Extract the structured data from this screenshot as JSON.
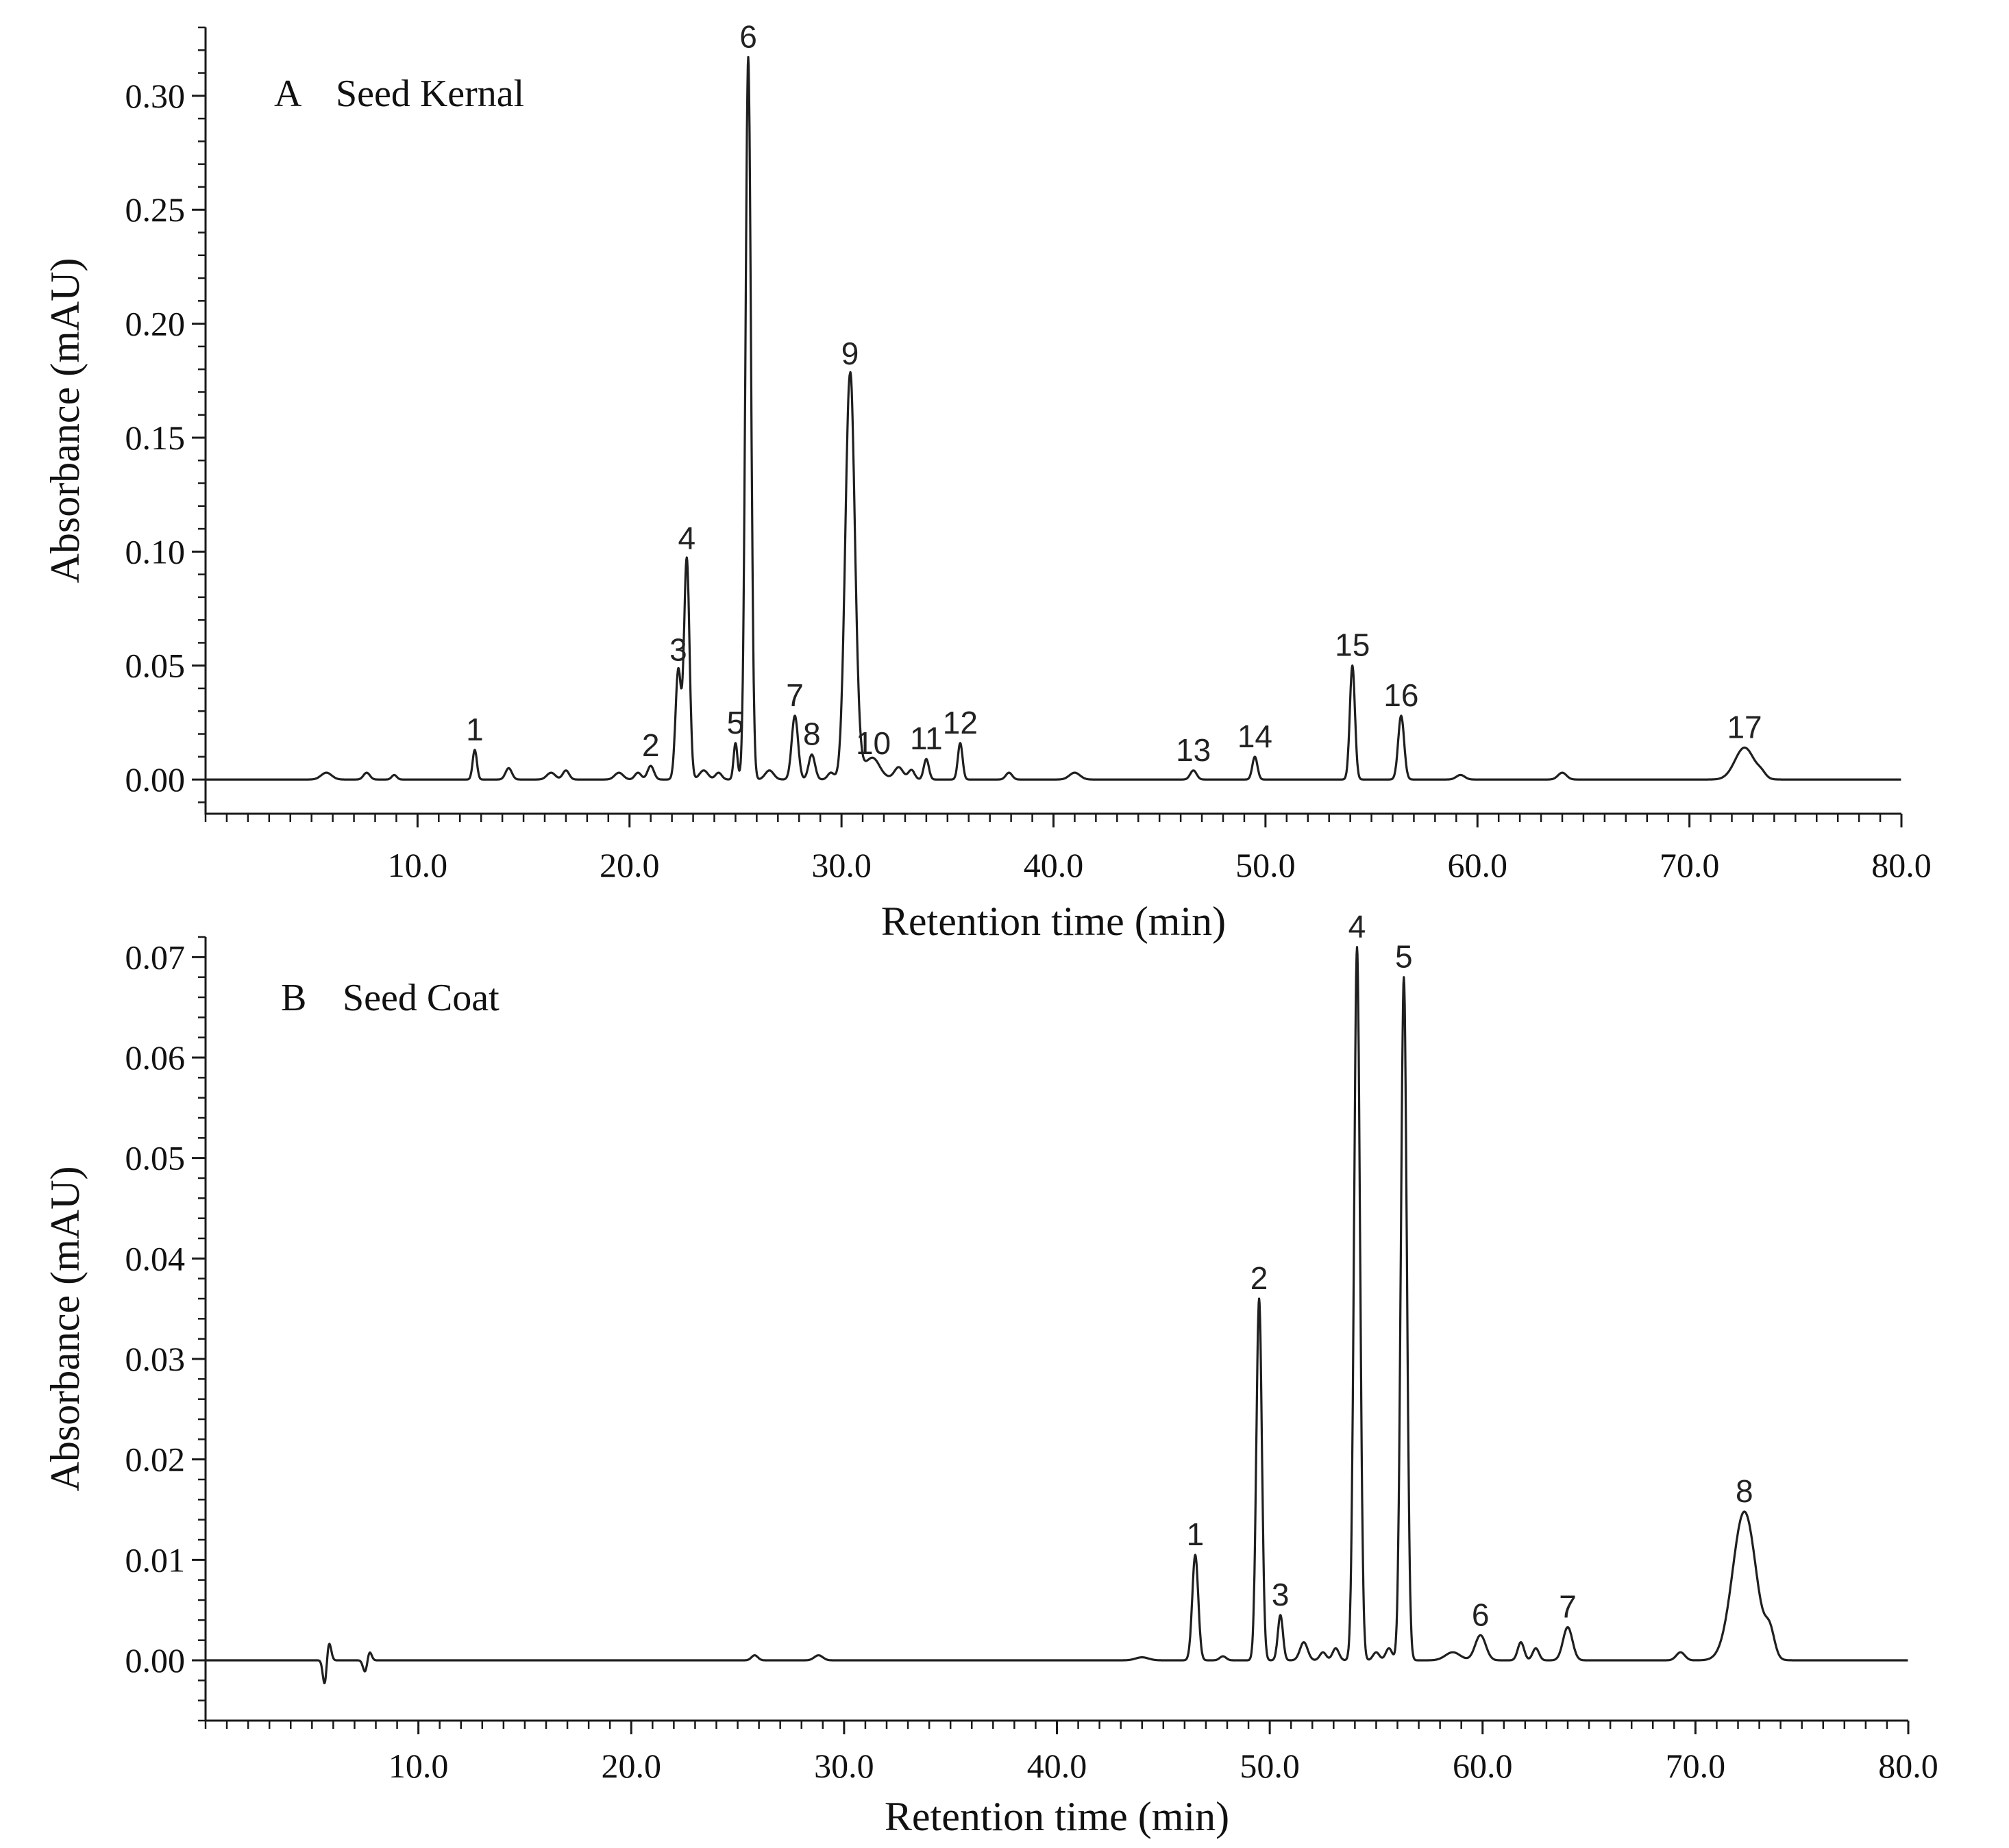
{
  "chart_data": [
    {
      "type": "line",
      "panel_letter": "A",
      "title": "Seed Kernal",
      "xlabel": "Retention time (min)",
      "ylabel": "Absorbance (mAU)",
      "xlim": [
        0,
        80
      ],
      "ylim": [
        -0.015,
        0.33
      ],
      "x_ticks": [
        10,
        20,
        30,
        40,
        50,
        60,
        70,
        80
      ],
      "x_tick_labels": [
        "10.0",
        "20.0",
        "30.0",
        "40.0",
        "50.0",
        "60.0",
        "70.0",
        "80.0"
      ],
      "y_ticks": [
        0,
        0.05,
        0.1,
        0.15,
        0.2,
        0.25,
        0.3
      ],
      "y_tick_labels": [
        "0.00",
        "0.05",
        "0.10",
        "0.15",
        "0.20",
        "0.25",
        "0.30"
      ],
      "grid": false,
      "peaks": [
        {
          "label": "1",
          "x": 12.7,
          "y": 0.013,
          "w": 0.1
        },
        {
          "label": "2",
          "x": 21.0,
          "y": 0.006,
          "w": 0.15
        },
        {
          "label": "3",
          "x": 22.3,
          "y": 0.048,
          "w": 0.13
        },
        {
          "label": "4",
          "x": 22.7,
          "y": 0.097,
          "w": 0.13
        },
        {
          "label": "5",
          "x": 25.0,
          "y": 0.016,
          "w": 0.09
        },
        {
          "label": "6",
          "x": 25.6,
          "y": 0.317,
          "w": 0.13
        },
        {
          "label": "7",
          "x": 27.8,
          "y": 0.028,
          "w": 0.15
        },
        {
          "label": "8",
          "x": 28.6,
          "y": 0.011,
          "w": 0.15
        },
        {
          "label": "9",
          "x": 30.4,
          "y": 0.178,
          "w": 0.22
        },
        {
          "label": "10",
          "x": 31.5,
          "y": 0.007,
          "w": 0.3
        },
        {
          "label": "11",
          "x": 34.0,
          "y": 0.009,
          "w": 0.12
        },
        {
          "label": "12",
          "x": 35.6,
          "y": 0.016,
          "w": 0.11
        },
        {
          "label": "13",
          "x": 46.6,
          "y": 0.004,
          "w": 0.15
        },
        {
          "label": "14",
          "x": 49.5,
          "y": 0.01,
          "w": 0.12
        },
        {
          "label": "15",
          "x": 54.1,
          "y": 0.05,
          "w": 0.12
        },
        {
          "label": "16",
          "x": 56.4,
          "y": 0.028,
          "w": 0.14
        },
        {
          "label": "17",
          "x": 72.6,
          "y": 0.014,
          "w": 0.45
        }
      ],
      "minor_peaks": [
        {
          "x": 5.7,
          "y": 0.003,
          "w": 0.25
        },
        {
          "x": 7.6,
          "y": 0.003,
          "w": 0.15
        },
        {
          "x": 8.9,
          "y": 0.002,
          "w": 0.12
        },
        {
          "x": 14.3,
          "y": 0.005,
          "w": 0.15
        },
        {
          "x": 16.3,
          "y": 0.003,
          "w": 0.2
        },
        {
          "x": 17.0,
          "y": 0.004,
          "w": 0.15
        },
        {
          "x": 19.5,
          "y": 0.003,
          "w": 0.2
        },
        {
          "x": 20.4,
          "y": 0.003,
          "w": 0.15
        },
        {
          "x": 23.5,
          "y": 0.004,
          "w": 0.2
        },
        {
          "x": 24.2,
          "y": 0.003,
          "w": 0.15
        },
        {
          "x": 26.6,
          "y": 0.004,
          "w": 0.2
        },
        {
          "x": 29.5,
          "y": 0.003,
          "w": 0.15
        },
        {
          "x": 32.7,
          "y": 0.005,
          "w": 0.2
        },
        {
          "x": 33.3,
          "y": 0.004,
          "w": 0.15
        },
        {
          "x": 37.9,
          "y": 0.003,
          "w": 0.15
        },
        {
          "x": 41.0,
          "y": 0.003,
          "w": 0.25
        },
        {
          "x": 59.2,
          "y": 0.002,
          "w": 0.2
        },
        {
          "x": 64.0,
          "y": 0.003,
          "w": 0.2
        },
        {
          "x": 73.4,
          "y": 0.002,
          "w": 0.2
        }
      ]
    },
    {
      "type": "line",
      "panel_letter": "B",
      "title": "Seed Coat",
      "xlabel": "Retention time (min)",
      "ylabel": "Absorbance (mAU)",
      "xlim": [
        0,
        80
      ],
      "ylim": [
        -0.006,
        0.072
      ],
      "x_ticks": [
        10,
        20,
        30,
        40,
        50,
        60,
        70,
        80
      ],
      "x_tick_labels": [
        "10.0",
        "20.0",
        "30.0",
        "40.0",
        "50.0",
        "60.0",
        "70.0",
        "80.0"
      ],
      "y_ticks": [
        0,
        0.01,
        0.02,
        0.03,
        0.04,
        0.05,
        0.06,
        0.07
      ],
      "y_tick_labels": [
        "0.00",
        "0.01",
        "0.02",
        "0.03",
        "0.04",
        "0.05",
        "0.06",
        "0.07"
      ],
      "grid": false,
      "peaks": [
        {
          "label": "1",
          "x": 46.5,
          "y": 0.0105,
          "w": 0.14
        },
        {
          "label": "2",
          "x": 49.5,
          "y": 0.036,
          "w": 0.13
        },
        {
          "label": "3",
          "x": 50.5,
          "y": 0.0045,
          "w": 0.12
        },
        {
          "label": "4",
          "x": 54.1,
          "y": 0.071,
          "w": 0.14
        },
        {
          "label": "5",
          "x": 56.3,
          "y": 0.068,
          "w": 0.14
        },
        {
          "label": "6",
          "x": 59.9,
          "y": 0.0025,
          "w": 0.25
        },
        {
          "label": "7",
          "x": 64.0,
          "y": 0.0033,
          "w": 0.22
        },
        {
          "label": "8",
          "x": 72.3,
          "y": 0.0148,
          "w": 0.55
        }
      ],
      "minor_peaks": [
        {
          "x": 25.8,
          "y": 0.0005,
          "w": 0.15
        },
        {
          "x": 28.8,
          "y": 0.0005,
          "w": 0.2
        },
        {
          "x": 44.0,
          "y": 0.0003,
          "w": 0.3
        },
        {
          "x": 47.8,
          "y": 0.0004,
          "w": 0.15
        },
        {
          "x": 51.6,
          "y": 0.0018,
          "w": 0.18
        },
        {
          "x": 52.5,
          "y": 0.0008,
          "w": 0.15
        },
        {
          "x": 53.1,
          "y": 0.0012,
          "w": 0.15
        },
        {
          "x": 55.0,
          "y": 0.0008,
          "w": 0.15
        },
        {
          "x": 55.6,
          "y": 0.0012,
          "w": 0.15
        },
        {
          "x": 58.6,
          "y": 0.0008,
          "w": 0.35
        },
        {
          "x": 61.8,
          "y": 0.0018,
          "w": 0.15
        },
        {
          "x": 62.5,
          "y": 0.0012,
          "w": 0.15
        },
        {
          "x": 69.3,
          "y": 0.0008,
          "w": 0.2
        },
        {
          "x": 73.5,
          "y": 0.0024,
          "w": 0.22
        }
      ],
      "disturbances": [
        {
          "x": 5.8,
          "y": 0.0018,
          "w": 0.1
        },
        {
          "x": 5.6,
          "y": -0.0025,
          "w": 0.09
        },
        {
          "x": 7.5,
          "y": -0.0012,
          "w": 0.1
        },
        {
          "x": 7.7,
          "y": 0.0009,
          "w": 0.1
        }
      ]
    }
  ]
}
